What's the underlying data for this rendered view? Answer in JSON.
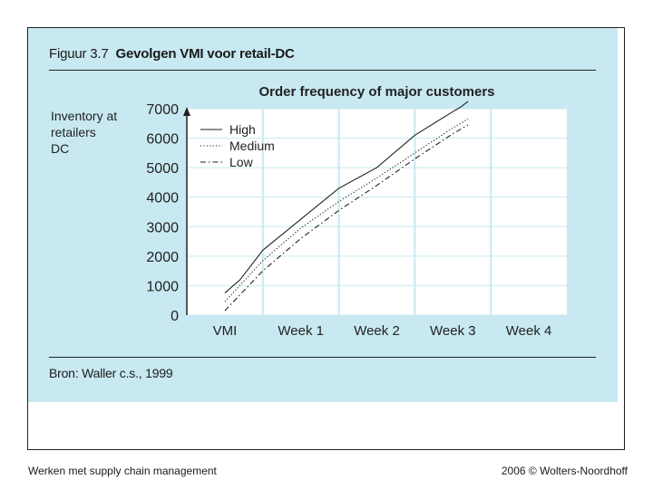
{
  "figure": {
    "number": "Figuur 3.7",
    "title": "Gevolgen VMI voor retail-DC",
    "source": "Bron: Waller c.s., 1999"
  },
  "footer": {
    "left": "Werken met supply chain management",
    "right": "2006 © Wolters-Noordhoff"
  },
  "colors": {
    "panel": "#c8e9f1",
    "plot": "#ffffff",
    "grid": "#c8e9f1",
    "line": "#222222"
  },
  "chart_data": {
    "type": "line",
    "title": "Order frequency of major customers",
    "ylabel_lines": [
      "Inventory at",
      "retailers",
      "DC"
    ],
    "xlabel": "",
    "categories": [
      "VMI",
      "Week 1",
      "Week 2",
      "Week 3",
      "Week 4"
    ],
    "ylim": [
      0,
      7000
    ],
    "yticks": [
      0,
      1000,
      2000,
      3000,
      4000,
      5000,
      6000,
      7000
    ],
    "legend_position": "top-left",
    "series": [
      {
        "name": "High",
        "style": "solid",
        "points": [
          [
            0,
            750
          ],
          [
            0.2,
            1200
          ],
          [
            0.5,
            2200
          ],
          [
            1.0,
            3250
          ],
          [
            1.5,
            4300
          ],
          [
            2.0,
            5000
          ],
          [
            2.5,
            6100
          ],
          [
            3.0,
            6900
          ],
          [
            3.1,
            7050
          ],
          [
            3.2,
            7250
          ]
        ]
      },
      {
        "name": "Medium",
        "style": "dotted",
        "points": [
          [
            0,
            450
          ],
          [
            0.5,
            1850
          ],
          [
            1.0,
            2950
          ],
          [
            1.5,
            3850
          ],
          [
            2.0,
            4650
          ],
          [
            2.5,
            5500
          ],
          [
            3.0,
            6350
          ],
          [
            3.2,
            6650
          ]
        ]
      },
      {
        "name": "Low",
        "style": "dashdot",
        "points": [
          [
            0,
            150
          ],
          [
            0.5,
            1500
          ],
          [
            1.0,
            2600
          ],
          [
            1.5,
            3550
          ],
          [
            2.0,
            4400
          ],
          [
            2.5,
            5300
          ],
          [
            3.0,
            6150
          ],
          [
            3.2,
            6450
          ]
        ]
      }
    ]
  }
}
